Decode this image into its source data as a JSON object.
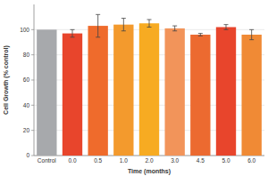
{
  "chart_data": {
    "type": "bar",
    "x_label": "Time (months)",
    "y_label": "Cell Growth (% control)",
    "categories": [
      "Control",
      "0.0",
      "0.5",
      "1.0",
      "2.0",
      "3.0",
      "4.5",
      "5.0",
      "6.0"
    ],
    "values": [
      100,
      97,
      103,
      104,
      105,
      101,
      96,
      102,
      96
    ],
    "errors": [
      null,
      3,
      9,
      5,
      3,
      2,
      1,
      2,
      4
    ],
    "colors": [
      "#a7a9ac",
      "#e8452c",
      "#ef6b2c",
      "#f39a2d",
      "#f7ab22",
      "#f2945a",
      "#ec6a30",
      "#e8452c",
      "#f08a35"
    ],
    "ylim": [
      0,
      120
    ],
    "yticks": [
      0,
      20,
      40,
      60,
      80,
      100
    ],
    "grid": true
  }
}
